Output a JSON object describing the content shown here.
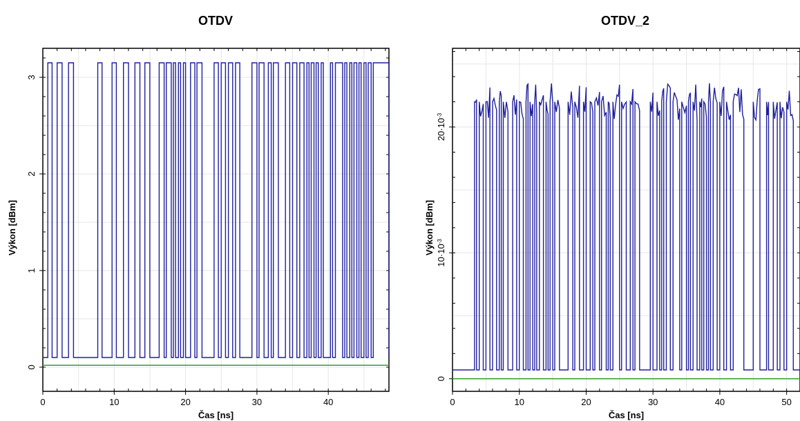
{
  "chart_data": [
    {
      "type": "line",
      "title": "OTDV",
      "xlabel": "Čas [ns]",
      "ylabel": "Výkon [dBm]",
      "xlim": [
        0,
        48.5
      ],
      "ylim": [
        -0.25,
        3.3
      ],
      "x_ticks": [
        0,
        10,
        20,
        30,
        40
      ],
      "y_ticks": [
        0,
        1,
        2,
        3
      ],
      "x_tick_labels": [
        "0",
        "10",
        "20",
        "30",
        "40"
      ],
      "y_tick_labels": [
        "0",
        "1",
        "2",
        "3"
      ],
      "grid": true,
      "series_colors": [
        "#1f1f9e",
        "#2ca02c"
      ],
      "series": [
        {
          "kind": "signal",
          "low": 0.1,
          "high": 3.15,
          "start": 0.1,
          "transitions": [
            0.7,
            1.3,
            2.0,
            2.7,
            3.6,
            4.3,
            7.7,
            8.3,
            9.7,
            10.3,
            11.3,
            12.0,
            12.9,
            13.6,
            14.3,
            15.0,
            16.3,
            17.0,
            17.3,
            18.0,
            18.3,
            18.6,
            19.0,
            19.3,
            19.7,
            20.0,
            20.7,
            21.3,
            21.6,
            22.3,
            24.0,
            24.6,
            25.0,
            25.6,
            26.0,
            26.6,
            27.0,
            27.6,
            29.3,
            30.0,
            30.3,
            31.0,
            31.6,
            32.0,
            32.3,
            33.0,
            34.0,
            34.6,
            35.0,
            35.6,
            36.0,
            36.6,
            37.0,
            37.3,
            37.6,
            38.0,
            38.3,
            38.6,
            39.0,
            39.3,
            40.3,
            40.6,
            41.0,
            42.0,
            42.3,
            42.6,
            43.0,
            43.3,
            43.6,
            44.0,
            44.3,
            44.6,
            45.0,
            45.3,
            45.6,
            46.0,
            46.3,
            48.5
          ]
        },
        {
          "kind": "flat",
          "y": 0.02
        }
      ]
    },
    {
      "type": "line",
      "title": "OTDV_2",
      "xlabel": "Čas [ns]",
      "ylabel": "Výkon [dBm]",
      "xlim": [
        0,
        52
      ],
      "ylim": [
        -0.001,
        0.02625
      ],
      "x_ticks": [
        0,
        10,
        20,
        30,
        40,
        50
      ],
      "y_ticks": [
        0,
        0.01,
        0.02
      ],
      "x_tick_labels": [
        "0",
        "10",
        "20",
        "30",
        "40",
        "50"
      ],
      "y_tick_labels": [
        "0",
        "10·10",
        "20·10"
      ],
      "y_tick_exponents": [
        "",
        "-3",
        "-3"
      ],
      "grid": true,
      "series_colors": [
        "#1f1f9e",
        "#2ca02c"
      ],
      "series": [
        {
          "kind": "signal",
          "low": 0.0007,
          "high": 0.022,
          "start": 0.0007,
          "transitions": [
            3.3,
            3.6,
            4.0,
            4.6,
            5.0,
            5.6,
            6.0,
            6.6,
            7.0,
            7.3,
            7.6,
            8.3,
            9.0,
            9.6,
            10.0,
            10.6,
            11.0,
            11.3,
            11.6,
            12.0,
            12.3,
            12.6,
            13.0,
            13.6,
            14.0,
            14.3,
            14.6,
            15.0,
            15.3,
            16.0,
            17.3,
            18.0,
            18.3,
            19.0,
            19.6,
            20.0,
            20.6,
            21.0,
            21.3,
            22.0,
            22.3,
            23.0,
            23.3,
            23.6,
            24.0,
            25.0,
            25.3,
            26.0,
            26.6,
            27.0,
            27.3,
            28.0,
            29.6,
            30.0,
            30.6,
            31.0,
            31.3,
            31.6,
            32.0,
            32.6,
            33.0,
            34.0,
            34.3,
            35.0,
            35.3,
            35.6,
            36.0,
            36.6,
            37.0,
            37.3,
            37.6,
            38.0,
            38.3,
            38.6,
            39.0,
            39.6,
            40.0,
            40.6,
            41.0,
            41.6,
            42.0,
            43.6,
            45.0,
            46.0,
            47.0,
            47.3,
            48.0,
            48.6,
            49.0,
            49.6,
            50.0,
            51.0,
            52.0
          ],
          "noise": 0.0015
        },
        {
          "kind": "flat",
          "y": 0.0
        }
      ]
    }
  ]
}
